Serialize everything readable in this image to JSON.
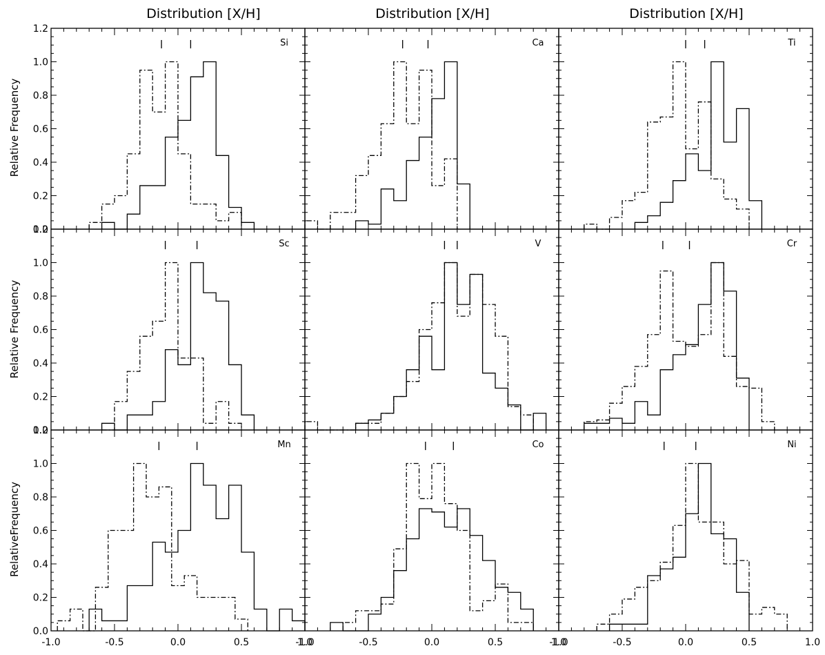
{
  "column_titles": [
    "Distribution [X/H]",
    "Distribution [X/H]",
    "Distribution [X/H]"
  ],
  "row_ylabels": [
    "Relative Frequency",
    "Relative Frequency",
    "RelativeFrequency"
  ],
  "chart_data": [
    {
      "type": "histogram",
      "panel_label": "Si",
      "xlim": [
        -1.0,
        1.0
      ],
      "ylim": [
        0.0,
        1.2
      ],
      "bin_width": 0.1,
      "series": [
        {
          "style": "solid",
          "x_start": -0.6,
          "values": [
            0.04,
            0.0,
            0.09,
            0.26,
            0.26,
            0.55,
            0.65,
            0.91,
            1.0,
            0.44,
            0.13,
            0.04
          ]
        },
        {
          "style": "dash-dot",
          "x_start": -0.7,
          "values": [
            0.04,
            0.15,
            0.2,
            0.45,
            0.95,
            0.7,
            1.0,
            0.45,
            0.15,
            0.15,
            0.05,
            0.1
          ]
        }
      ],
      "markers": {
        "solid": 0.1,
        "dash-dot": -0.13
      }
    },
    {
      "type": "histogram",
      "panel_label": "Ca",
      "xlim": [
        -1.0,
        1.0
      ],
      "ylim": [
        0.0,
        1.2
      ],
      "bin_width": 0.1,
      "series": [
        {
          "style": "solid",
          "x_start": -0.6,
          "values": [
            0.05,
            0.03,
            0.24,
            0.17,
            0.41,
            0.55,
            0.78,
            1.0,
            0.27
          ]
        },
        {
          "style": "dash-dot",
          "x_start": -1.0,
          "values": [
            0.05,
            0.0,
            0.1,
            0.1,
            0.32,
            0.44,
            0.63,
            1.0,
            0.63,
            0.95,
            0.26,
            0.42
          ]
        }
      ],
      "markers": {
        "solid": -0.03,
        "dash-dot": -0.23
      }
    },
    {
      "type": "histogram",
      "panel_label": "Ti",
      "xlim": [
        -1.0,
        1.0
      ],
      "ylim": [
        0.0,
        1.2
      ],
      "bin_width": 0.1,
      "series": [
        {
          "style": "solid",
          "x_start": -0.4,
          "values": [
            0.04,
            0.08,
            0.16,
            0.29,
            0.45,
            0.35,
            1.0,
            0.52,
            0.72,
            0.17
          ]
        },
        {
          "style": "dash-dot",
          "x_start": -0.8,
          "values": [
            0.03,
            0.0,
            0.07,
            0.17,
            0.22,
            0.64,
            0.67,
            1.0,
            0.48,
            0.76,
            0.3,
            0.18,
            0.12
          ]
        }
      ],
      "markers": {
        "solid": 0.15,
        "dash-dot": 0.0
      }
    },
    {
      "type": "histogram",
      "panel_label": "Sc",
      "xlim": [
        -1.0,
        1.0
      ],
      "ylim": [
        0.0,
        1.2
      ],
      "bin_width": 0.1,
      "series": [
        {
          "style": "solid",
          "x_start": -0.6,
          "values": [
            0.04,
            0.0,
            0.09,
            0.09,
            0.17,
            0.48,
            0.39,
            1.0,
            0.82,
            0.77,
            0.39,
            0.09
          ]
        },
        {
          "style": "dash-dot",
          "x_start": -0.6,
          "values": [
            0.0,
            0.17,
            0.35,
            0.56,
            0.65,
            1.0,
            0.43,
            0.43,
            0.04,
            0.17,
            0.04
          ]
        }
      ],
      "markers": {
        "solid": 0.15,
        "dash-dot": -0.1
      }
    },
    {
      "type": "histogram",
      "panel_label": "V",
      "xlim": [
        -1.0,
        1.0
      ],
      "ylim": [
        0.0,
        1.2
      ],
      "bin_width": 0.1,
      "series": [
        {
          "style": "solid",
          "x_start": -0.6,
          "values": [
            0.04,
            0.06,
            0.1,
            0.2,
            0.36,
            0.56,
            0.36,
            1.0,
            0.75,
            0.93,
            0.34,
            0.25,
            0.15,
            0.0,
            0.1
          ]
        },
        {
          "style": "dash-dot",
          "x_start": -1.0,
          "values": [
            0.05,
            0.0,
            0.0,
            0.0,
            0.04,
            0.04,
            0.1,
            0.2,
            0.29,
            0.6,
            0.76,
            1.0,
            0.68,
            0.93,
            0.75,
            0.56,
            0.14,
            0.09
          ]
        }
      ],
      "markers": {
        "solid": 0.2,
        "dash-dot": 0.1
      }
    },
    {
      "type": "histogram",
      "panel_label": "Cr",
      "xlim": [
        -1.0,
        1.0
      ],
      "ylim": [
        0.0,
        1.2
      ],
      "bin_width": 0.1,
      "series": [
        {
          "style": "solid",
          "x_start": -0.8,
          "values": [
            0.04,
            0.04,
            0.07,
            0.04,
            0.17,
            0.09,
            0.36,
            0.45,
            0.51,
            0.75,
            1.0,
            0.83,
            0.31
          ]
        },
        {
          "style": "dash-dot",
          "x_start": -0.8,
          "values": [
            0.05,
            0.06,
            0.16,
            0.26,
            0.38,
            0.57,
            0.95,
            0.53,
            0.5,
            0.57,
            1.0,
            0.44,
            0.26,
            0.25,
            0.05
          ]
        }
      ],
      "markers": {
        "solid": 0.03,
        "dash-dot": -0.18
      }
    },
    {
      "type": "histogram",
      "panel_label": "Mn",
      "xlim": [
        -1.0,
        1.0
      ],
      "ylim": [
        0.0,
        1.2
      ],
      "bin_width": 0.1,
      "series": [
        {
          "style": "solid",
          "x_start": -0.7,
          "values": [
            0.13,
            0.06,
            0.06,
            0.27,
            0.27,
            0.53,
            0.47,
            0.6,
            1.0,
            0.87,
            0.67,
            0.87,
            0.47,
            0.13,
            0.0,
            0.13,
            0.06
          ]
        },
        {
          "style": "dash-dot",
          "x_start": -0.95,
          "values": [
            0.06,
            0.13,
            0.0,
            0.26,
            0.6,
            0.6,
            1.0,
            0.8,
            0.86,
            0.27,
            0.33,
            0.2,
            0.2,
            0.2,
            0.07
          ]
        }
      ],
      "markers": {
        "solid": 0.15,
        "dash-dot": -0.15
      }
    },
    {
      "type": "histogram",
      "panel_label": "Co",
      "xlim": [
        -1.0,
        1.0
      ],
      "ylim": [
        0.0,
        1.2
      ],
      "bin_width": 0.1,
      "series": [
        {
          "style": "solid",
          "x_start": -0.8,
          "values": [
            0.05,
            0.0,
            0.0,
            0.1,
            0.2,
            0.36,
            0.55,
            0.73,
            0.71,
            0.62,
            0.73,
            0.57,
            0.42,
            0.26,
            0.23,
            0.13
          ]
        },
        {
          "style": "dash-dot",
          "x_start": -0.7,
          "values": [
            0.05,
            0.12,
            0.12,
            0.16,
            0.49,
            1.0,
            0.79,
            1.0,
            0.76,
            0.6,
            0.12,
            0.18,
            0.28,
            0.05,
            0.05
          ]
        }
      ],
      "markers": {
        "solid": 0.17,
        "dash-dot": -0.05
      }
    },
    {
      "type": "histogram",
      "panel_label": "Ni",
      "xlim": [
        -1.0,
        1.0
      ],
      "ylim": [
        0.0,
        1.2
      ],
      "bin_width": 0.1,
      "series": [
        {
          "style": "solid",
          "x_start": -0.6,
          "values": [
            0.04,
            0.04,
            0.04,
            0.33,
            0.37,
            0.44,
            0.7,
            1.0,
            0.58,
            0.55,
            0.23
          ]
        },
        {
          "style": "dash-dot",
          "x_start": -0.7,
          "values": [
            0.04,
            0.1,
            0.19,
            0.26,
            0.3,
            0.41,
            0.63,
            1.0,
            0.65,
            0.65,
            0.4,
            0.42,
            0.1,
            0.14,
            0.1
          ]
        }
      ],
      "markers": {
        "solid": 0.08,
        "dash-dot": -0.17
      }
    }
  ],
  "x_ticks": [
    -1.0,
    -0.5,
    0.0,
    0.5,
    1.0
  ],
  "y_ticks": [
    0.0,
    0.2,
    0.4,
    0.6,
    0.8,
    1.0,
    1.2
  ]
}
